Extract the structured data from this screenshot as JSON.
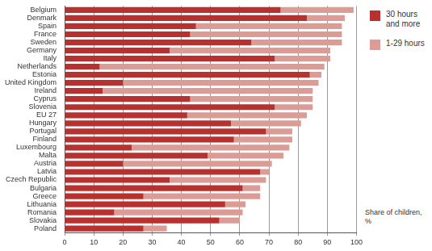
{
  "chart_data": {
    "type": "bar",
    "orientation": "horizontal",
    "stacked": true,
    "xlabel": "Share of children, %",
    "categories": [
      "Belgium",
      "Denmark",
      "Spain",
      "France",
      "Sweden",
      "Germany",
      "Italy",
      "Netherlands",
      "Estonia",
      "United Kingdom",
      "Ireland",
      "Cyprus",
      "Slovenia",
      "EU 27",
      "Hungary",
      "Portugal",
      "Finland",
      "Luxembourg",
      "Malta",
      "Austria",
      "Latvia",
      "Czech Republic",
      "Bulgaria",
      "Greece",
      "Lithuania",
      "Romania",
      "Slovakia",
      "Poland"
    ],
    "series": [
      {
        "name": "30 hours and more",
        "color": "#b8312f",
        "values": [
          74,
          83,
          45,
          43,
          64,
          36,
          72,
          12,
          84,
          20,
          13,
          43,
          72,
          42,
          57,
          69,
          58,
          23,
          49,
          20,
          67,
          36,
          61,
          27,
          55,
          17,
          53,
          27
        ]
      },
      {
        "name": "1-29 hours",
        "color": "#dc9b95",
        "values": [
          25,
          13,
          50,
          52,
          31,
          55,
          19,
          77,
          4,
          67,
          72,
          42,
          13,
          41,
          24,
          9,
          20,
          54,
          26,
          51,
          3,
          33,
          6,
          40,
          7,
          44,
          7,
          8
        ]
      }
    ],
    "xlim": [
      0,
      100
    ],
    "xticks": [
      0,
      10,
      20,
      30,
      40,
      50,
      60,
      70,
      80,
      90,
      100
    ],
    "grid": true,
    "legend": "upper right"
  }
}
